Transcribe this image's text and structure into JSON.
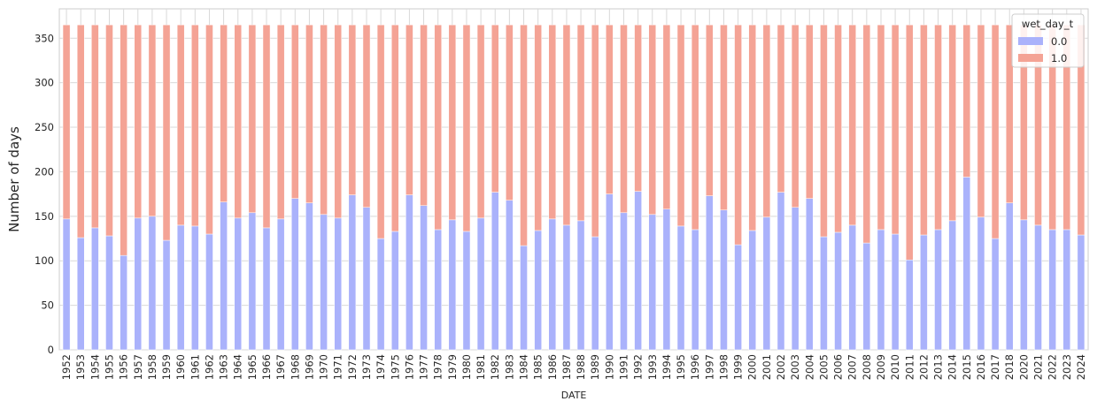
{
  "chart_data": {
    "type": "bar",
    "stacked": true,
    "title": "",
    "xlabel": "DATE",
    "ylabel": "Number of days",
    "ylim": [
      0,
      383
    ],
    "yticks": [
      0,
      50,
      100,
      150,
      200,
      250,
      300,
      350
    ],
    "grid": true,
    "legend": {
      "title": "wet_day_t",
      "position": "top-right"
    },
    "categories": [
      "1952",
      "1953",
      "1954",
      "1955",
      "1956",
      "1957",
      "1958",
      "1959",
      "1960",
      "1961",
      "1962",
      "1963",
      "1964",
      "1965",
      "1966",
      "1967",
      "1968",
      "1969",
      "1970",
      "1971",
      "1972",
      "1973",
      "1974",
      "1975",
      "1976",
      "1977",
      "1978",
      "1979",
      "1980",
      "1981",
      "1982",
      "1983",
      "1984",
      "1985",
      "1986",
      "1987",
      "1988",
      "1989",
      "1990",
      "1991",
      "1992",
      "1993",
      "1994",
      "1995",
      "1996",
      "1997",
      "1998",
      "1999",
      "2000",
      "2001",
      "2002",
      "2003",
      "2004",
      "2005",
      "2006",
      "2007",
      "2008",
      "2009",
      "2010",
      "2011",
      "2012",
      "2013",
      "2014",
      "2015",
      "2016",
      "2017",
      "2018",
      "2020",
      "2021",
      "2022",
      "2023",
      "2024"
    ],
    "series": [
      {
        "name": "0.0",
        "color": "#aab2fb",
        "values": [
          147,
          126,
          137,
          128,
          106,
          148,
          150,
          123,
          140,
          139,
          130,
          166,
          148,
          154,
          137,
          147,
          170,
          165,
          152,
          148,
          174,
          160,
          125,
          133,
          174,
          162,
          135,
          146,
          133,
          148,
          177,
          168,
          117,
          134,
          147,
          140,
          145,
          127,
          175,
          154,
          178,
          152,
          158,
          139,
          135,
          173,
          157,
          118,
          134,
          149,
          177,
          160,
          170,
          127,
          132,
          140,
          120,
          135,
          130,
          101,
          129,
          135,
          145,
          194,
          149,
          125,
          165,
          146,
          140,
          135,
          135,
          129
        ]
      },
      {
        "name": "1.0",
        "color": "#f4a395",
        "values": [
          218,
          239,
          228,
          237,
          259,
          217,
          215,
          242,
          225,
          226,
          235,
          199,
          217,
          211,
          228,
          218,
          195,
          200,
          213,
          217,
          191,
          205,
          240,
          232,
          191,
          203,
          230,
          219,
          232,
          217,
          188,
          197,
          248,
          231,
          218,
          225,
          220,
          238,
          190,
          211,
          187,
          213,
          207,
          226,
          230,
          192,
          208,
          247,
          231,
          216,
          188,
          205,
          195,
          238,
          233,
          225,
          245,
          230,
          235,
          264,
          236,
          230,
          220,
          171,
          216,
          240,
          200,
          219,
          225,
          230,
          230,
          236
        ]
      }
    ]
  }
}
